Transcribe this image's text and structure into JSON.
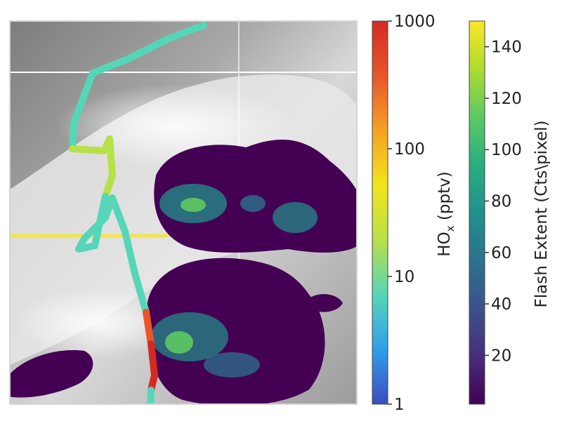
{
  "chart_data": {
    "type": "map-overlay",
    "title": "",
    "background": "grayscale satellite cloud imagery with lightning flash-extent density overlay and aircraft flight track colored by HOx",
    "map_gridlines": true,
    "colorbars": [
      {
        "id": "hox",
        "label": "HOx (pptv)",
        "label_base": "HO",
        "label_sub": "x",
        "label_rest": " (pptv)",
        "scale": "log",
        "range": [
          1,
          1000
        ],
        "ticks": [
          {
            "value": 1,
            "label": "1"
          },
          {
            "value": 10,
            "label": "10"
          },
          {
            "value": 100,
            "label": "100"
          },
          {
            "value": 1000,
            "label": "1000"
          }
        ],
        "colormap": [
          "#3b4cc0",
          "#2f9fe8",
          "#56d6b8",
          "#b8e048",
          "#f2e51c",
          "#f4a224",
          "#e8572a",
          "#d42a22"
        ]
      },
      {
        "id": "flash",
        "label": "Flash Extent (Cts\\pixel)",
        "scale": "linear",
        "range": [
          1,
          150
        ],
        "ticks": [
          {
            "value": 20,
            "label": "20"
          },
          {
            "value": 40,
            "label": "40"
          },
          {
            "value": 60,
            "label": "60"
          },
          {
            "value": 80,
            "label": "80"
          },
          {
            "value": 100,
            "label": "100"
          },
          {
            "value": 120,
            "label": "120"
          },
          {
            "value": 140,
            "label": "140"
          }
        ],
        "colormap": [
          "#440154",
          "#472d7b",
          "#3b528b",
          "#2c728e",
          "#21918c",
          "#28ae80",
          "#5ec962",
          "#addc30",
          "#fde725"
        ]
      }
    ],
    "flight_track_hox_pptv": [
      8,
      8,
      8,
      8,
      9,
      12,
      25,
      20,
      12,
      10,
      9,
      9,
      9,
      8,
      8,
      9,
      11,
      600,
      800,
      700,
      10,
      9
    ],
    "colors": {
      "track_default": "#6fd0c0",
      "flash_low": "#440154",
      "flash_high": "#fde725"
    }
  }
}
